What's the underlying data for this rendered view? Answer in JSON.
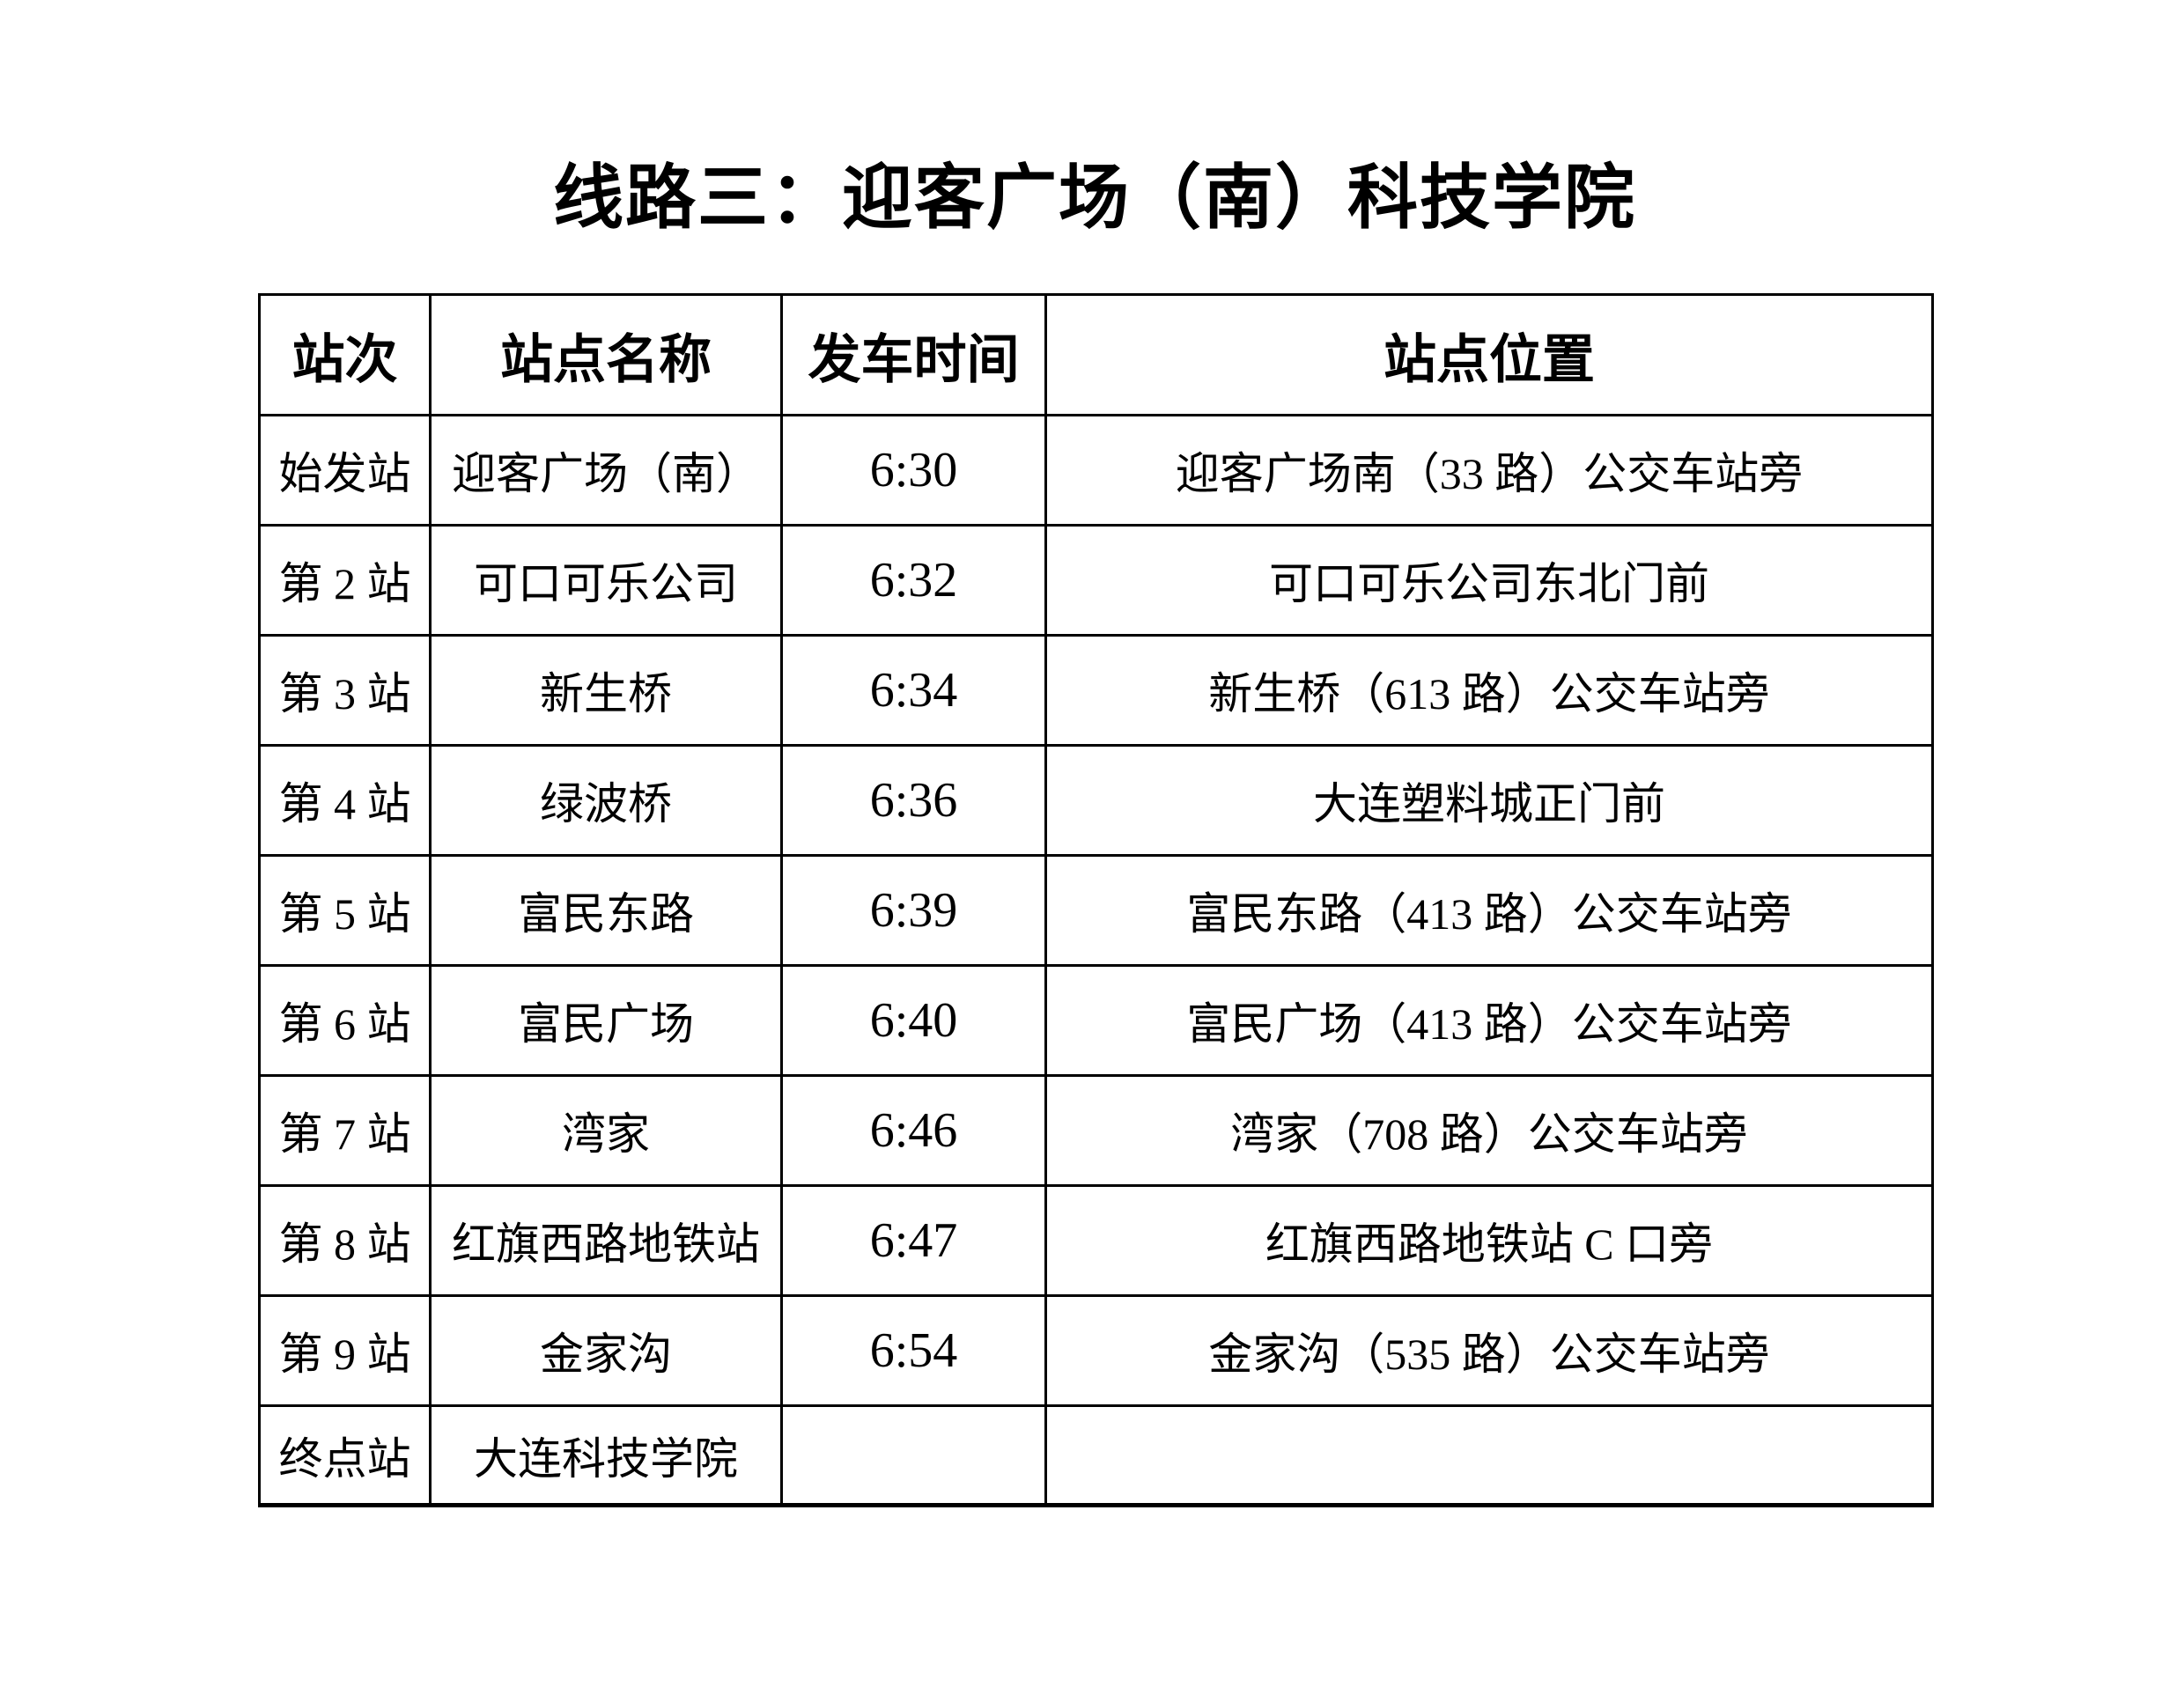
{
  "page": {
    "title": "线路三：迎客广场（南）科技学院"
  },
  "colors": {
    "background": "#ffffff",
    "text": "#000000",
    "table_border": "#000000"
  },
  "table": {
    "headers": [
      "站次",
      "站点名称",
      "发车时间",
      "站点位置"
    ],
    "rows": [
      {
        "seq": "始发站",
        "name": "迎客广场（南）",
        "time": "6:30",
        "location": "迎客广场南（33 路）公交车站旁"
      },
      {
        "seq": "第 2 站",
        "name": "可口可乐公司",
        "time": "6:32",
        "location": "可口可乐公司东北门前"
      },
      {
        "seq": "第 3 站",
        "name": "新生桥",
        "time": "6:34",
        "location": "新生桥（613 路）公交车站旁"
      },
      {
        "seq": "第 4 站",
        "name": "绿波桥",
        "time": "6:36",
        "location": "大连塑料城正门前"
      },
      {
        "seq": "第 5 站",
        "name": "富民东路",
        "time": "6:39",
        "location": "富民东路（413 路）公交车站旁"
      },
      {
        "seq": "第 6 站",
        "name": "富民广场",
        "time": "6:40",
        "location": "富民广场（413 路）公交车站旁"
      },
      {
        "seq": "第 7 站",
        "name": "湾家",
        "time": "6:46",
        "location": "湾家（708 路）公交车站旁"
      },
      {
        "seq": "第 8 站",
        "name": "红旗西路地铁站",
        "time": "6:47",
        "location": "红旗西路地铁站 C 口旁"
      },
      {
        "seq": "第 9 站",
        "name": "金家沟",
        "time": "6:54",
        "location": "金家沟（535 路）公交车站旁"
      },
      {
        "seq": "终点站",
        "name": "大连科技学院",
        "time": "",
        "location": ""
      }
    ]
  }
}
